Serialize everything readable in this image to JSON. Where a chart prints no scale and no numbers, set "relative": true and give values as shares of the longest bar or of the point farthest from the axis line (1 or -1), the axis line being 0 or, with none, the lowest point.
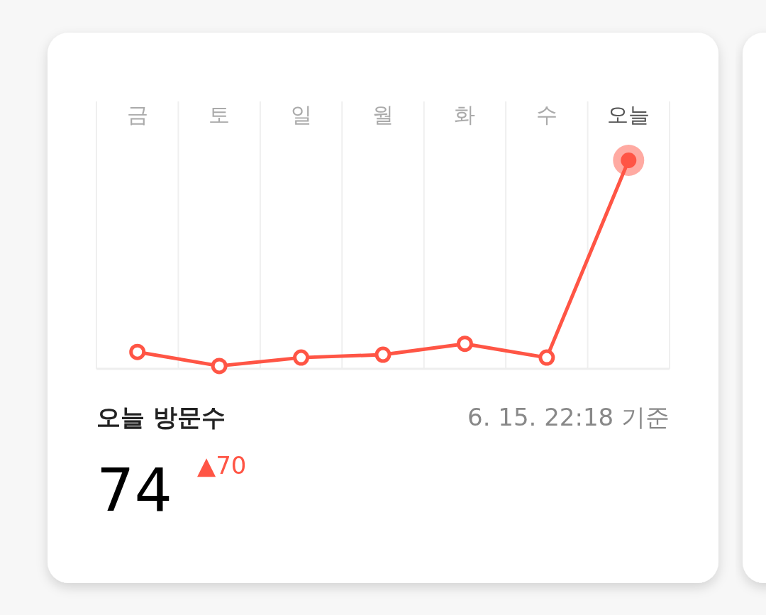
{
  "chart_data": {
    "type": "line",
    "relative": true,
    "categories": [
      "금",
      "토",
      "일",
      "월",
      "화",
      "수",
      "오늘"
    ],
    "series": [
      {
        "color": "#ff5545",
        "values": [
          0.081,
          0.014,
          0.054,
          0.068,
          0.12,
          0.054,
          1
        ]
      }
    ],
    "marker": "circle",
    "grid": "x",
    "annotations": [
      "오늘 방문수",
      "6. 15. 22:18 기준",
      "74",
      "▲70"
    ]
  }
}
